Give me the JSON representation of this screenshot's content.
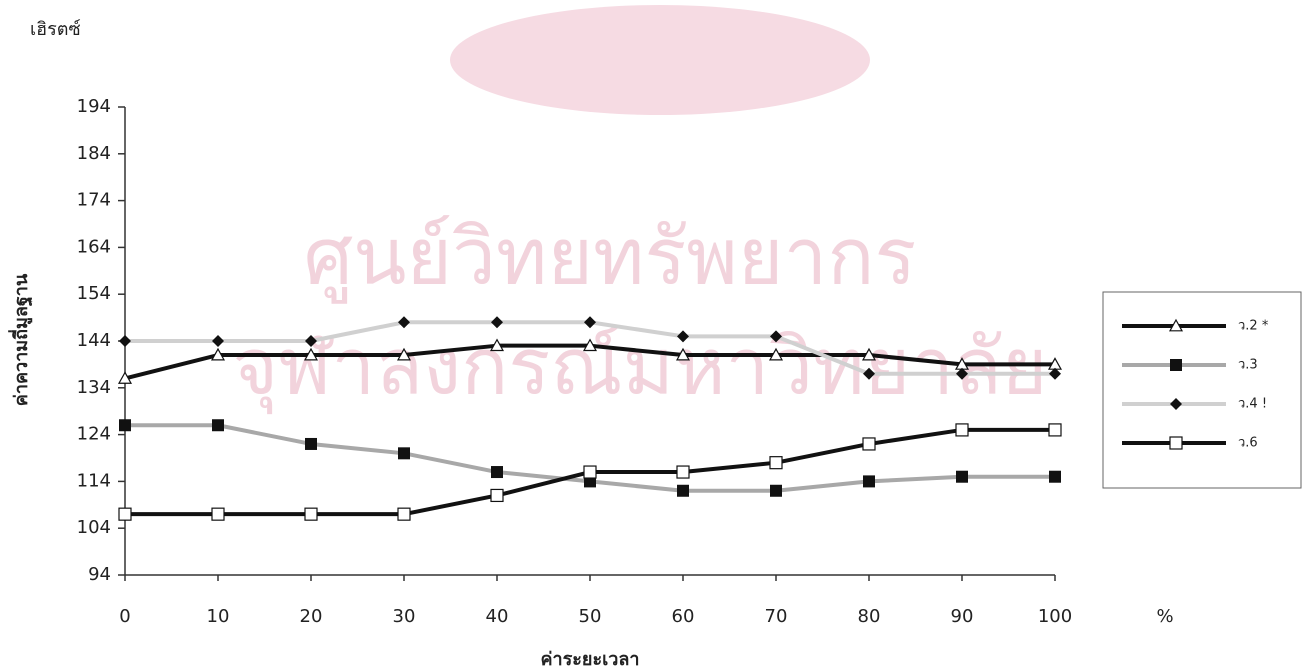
{
  "watermark": [
    "ศูนย์วิทยทรัพยากร",
    "จุฬาลงกรณ์มหาวิทยาลัย"
  ],
  "chart_data": {
    "type": "line",
    "y_unit": "เฮิรตซ์",
    "y_label": "ค่าความถี่มูลฐาน",
    "x_label": "ค่าระยะเวลา",
    "x_unit": "%",
    "x": [
      0,
      10,
      20,
      30,
      40,
      50,
      60,
      70,
      80,
      90,
      100
    ],
    "xlim": [
      0,
      100
    ],
    "xticks": [
      0,
      10,
      20,
      30,
      40,
      50,
      60,
      70,
      80,
      90,
      100
    ],
    "ylim": [
      94,
      194
    ],
    "yticks": [
      94,
      104,
      114,
      124,
      134,
      144,
      154,
      164,
      174,
      184,
      194
    ],
    "grid": false,
    "legend": "right",
    "series": [
      {
        "name": "ว.2 *",
        "color": "#111111",
        "marker": "triangle-open",
        "values": [
          136,
          141,
          141,
          141,
          143,
          143,
          141,
          141,
          141,
          139,
          139
        ]
      },
      {
        "name": "ว.3",
        "color": "#a8a8a8",
        "marker": "square",
        "values": [
          126,
          126,
          122,
          120,
          116,
          114,
          112,
          112,
          114,
          115,
          115
        ]
      },
      {
        "name": "ว.4 !",
        "color": "#d0d0d0",
        "marker": "diamond",
        "values": [
          144,
          144,
          144,
          148,
          148,
          148,
          145,
          145,
          137,
          137,
          137
        ]
      },
      {
        "name": "ว.6",
        "color": "#111111",
        "marker": "square-open",
        "values": [
          107,
          107,
          107,
          107,
          111,
          116,
          116,
          118,
          122,
          125,
          125
        ]
      }
    ]
  }
}
